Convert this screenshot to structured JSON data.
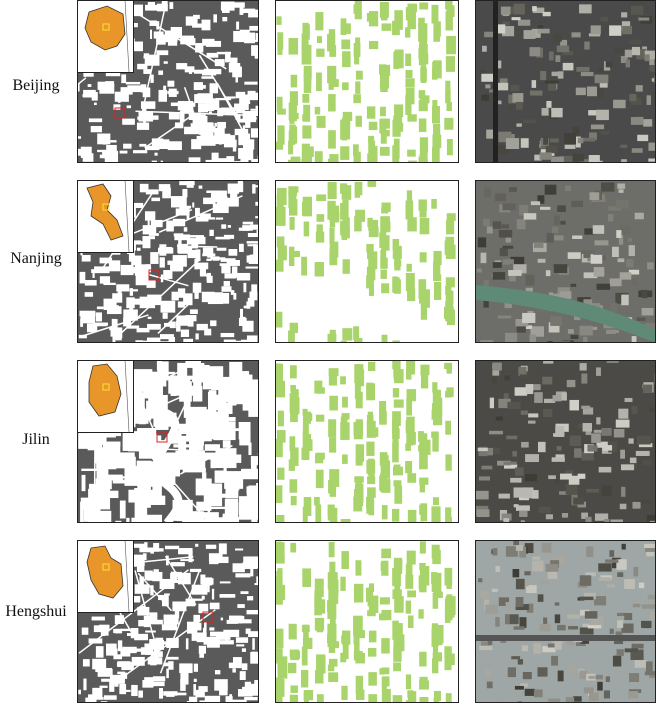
{
  "rows": [
    {
      "label": "Beijing"
    },
    {
      "label": "Nanjing"
    },
    {
      "label": "Jilin"
    },
    {
      "label": "Hengshui"
    }
  ]
}
